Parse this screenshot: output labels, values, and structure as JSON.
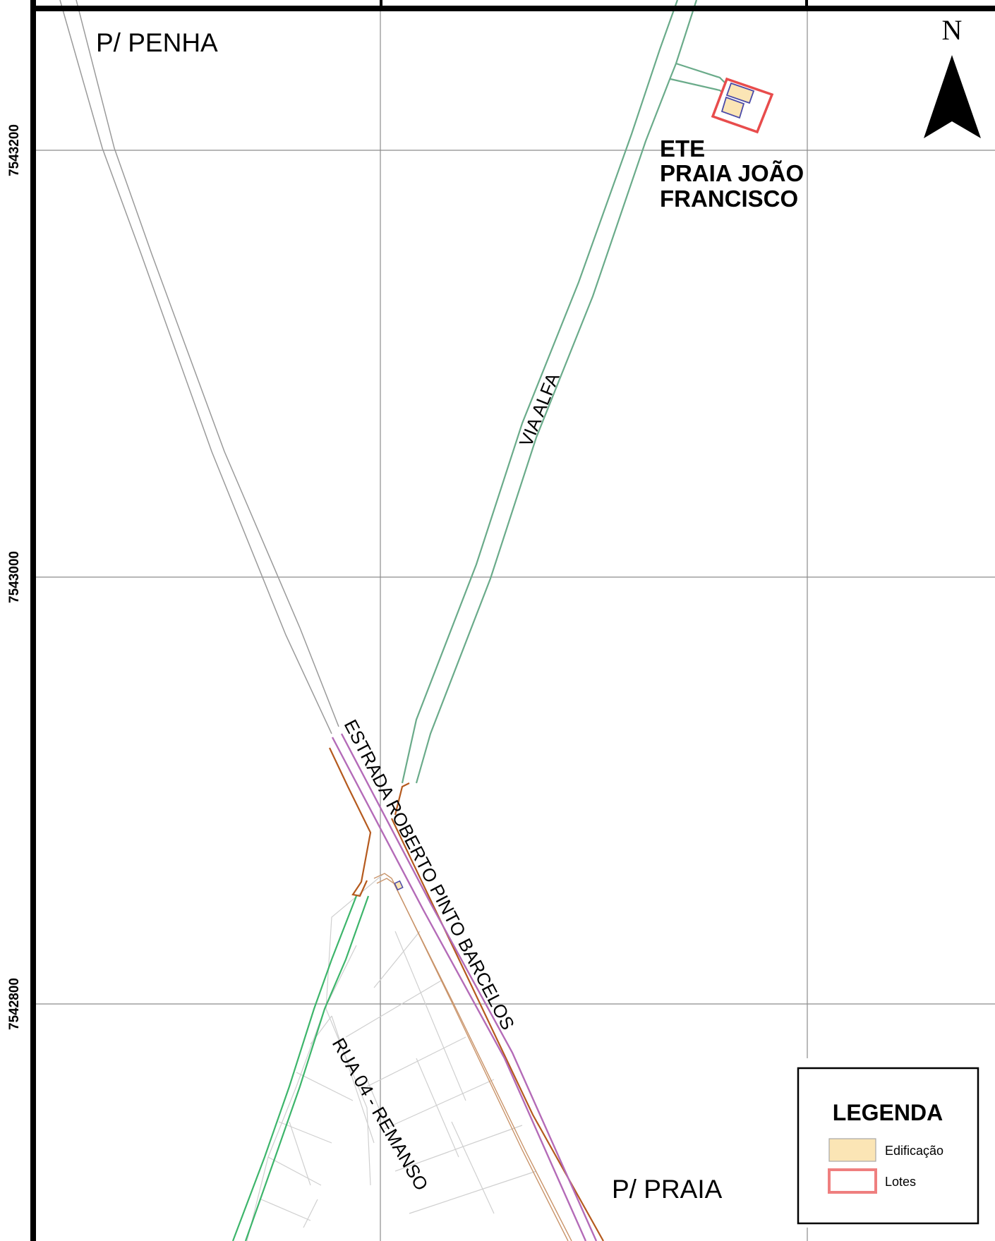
{
  "map": {
    "grid_labels": {
      "y1": "7543200",
      "y2": "7543000",
      "y3": "7542800"
    },
    "places": {
      "penha": "P/ PENHA",
      "praia": "P/ PRAIA"
    },
    "ete": {
      "line1": "ETE",
      "line2": "PRAIA JOÃO",
      "line3": "FRANCISCO"
    },
    "roads": {
      "via_alfa": "VIA ALFA",
      "estrada": "ESTRADA ROBERTO PINTO BARCELOS",
      "rua04": "RUA 04 - REMANSO"
    },
    "north_arrow": {
      "letter": "N",
      "icon": "north-arrow-icon"
    },
    "legend": {
      "title": "LEGENDA",
      "items": [
        {
          "label": "Edificação",
          "fill": "#fbe5b5",
          "stroke": "#a8a8a8"
        },
        {
          "label": "Lotes",
          "fill": "#ffffff",
          "stroke": "#ef7f7f"
        }
      ]
    },
    "colors": {
      "frame": "#000000",
      "grid": "#8c8c8c",
      "road_gray": "#9a9a9a",
      "via_alfa": "#6aab8a",
      "green_road": "#3db56b",
      "estrada_purple": "#b46bb8",
      "brown_road": "#b55a1e",
      "building_fill": "#fbe5b5",
      "building_stroke": "#4a4aa8",
      "lot_stroke": "#e84c4c",
      "parcel_lines": "#cfcfcf"
    }
  }
}
